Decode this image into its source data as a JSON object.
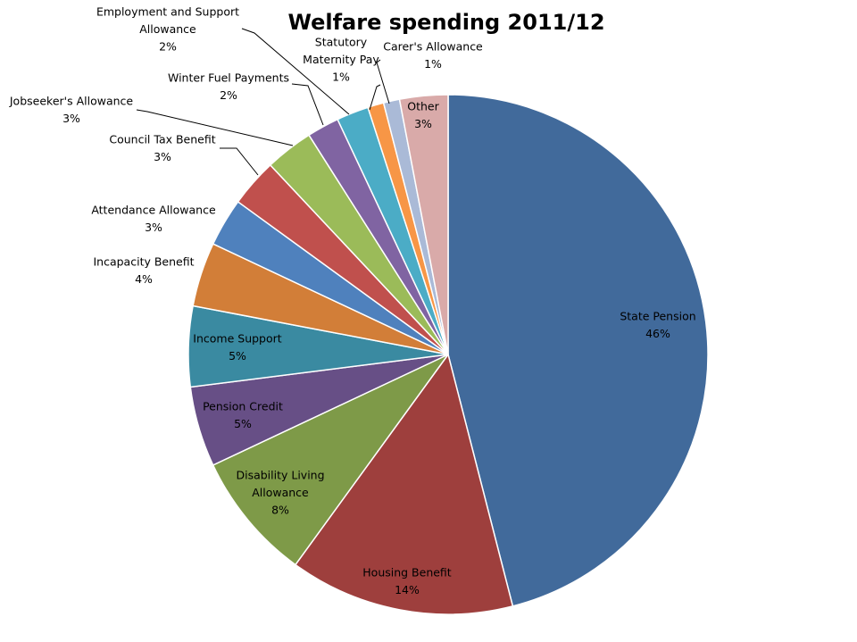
{
  "chart_data": {
    "type": "pie",
    "title": "Welfare spending 2011/12",
    "slices": [
      {
        "label": "State Pension",
        "value": 46,
        "value_label": "46%",
        "color": "#416a9b"
      },
      {
        "label": "Housing Benefit",
        "value": 14,
        "value_label": "14%",
        "color": "#9e3f3d"
      },
      {
        "label": "Disability Living Allowance",
        "value": 8,
        "value_label": "8%",
        "color": "#7e9a48"
      },
      {
        "label": "Pension Credit",
        "value": 5,
        "value_label": "5%",
        "color": "#674f86"
      },
      {
        "label": "Income Support",
        "value": 5,
        "value_label": "5%",
        "color": "#3a8aa1"
      },
      {
        "label": "Incapacity Benefit",
        "value": 4,
        "value_label": "4%",
        "color": "#d27e38"
      },
      {
        "label": "Attendance Allowance",
        "value": 3,
        "value_label": "3%",
        "color": "#4f81bd"
      },
      {
        "label": "Council Tax Benefit",
        "value": 3,
        "value_label": "3%",
        "color": "#c0504d"
      },
      {
        "label": "Jobseeker's Allowance",
        "value": 3,
        "value_label": "3%",
        "color": "#9bbb59"
      },
      {
        "label": "Winter Fuel Payments",
        "value": 2,
        "value_label": "2%",
        "color": "#8064a2"
      },
      {
        "label": "Employment and Support Allowance",
        "value": 2,
        "value_label": "2%",
        "color": "#4bacc6"
      },
      {
        "label": "Statutory Maternity Pay",
        "value": 1,
        "value_label": "1%",
        "color": "#f79646"
      },
      {
        "label": "Carer's Allowance",
        "value": 1,
        "value_label": "1%",
        "color": "#aabad7"
      },
      {
        "label": "Other",
        "value": 3,
        "value_label": "3%",
        "color": "#d9aaa9"
      }
    ],
    "start_angle": "12 o'clock",
    "direction": "clockwise",
    "legend": "none"
  }
}
